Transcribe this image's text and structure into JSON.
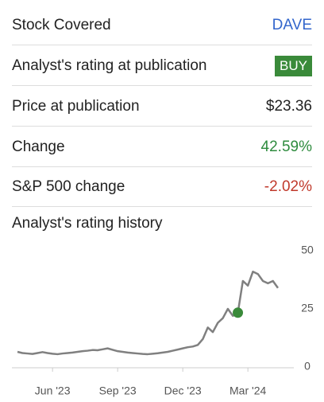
{
  "rows": [
    {
      "label": "Stock Covered",
      "value": "DAVE"
    },
    {
      "label": "Analyst's rating at publication",
      "value": "BUY"
    },
    {
      "label": "Price at publication",
      "value": "$23.36"
    },
    {
      "label": "Change",
      "value": "42.59%"
    },
    {
      "label": "S&P 500 change",
      "value": "-2.02%"
    }
  ],
  "chart_data": {
    "type": "line",
    "title": "Analyst's rating history",
    "categories": [
      null,
      null,
      null,
      null,
      null,
      null,
      null,
      "Jun '23",
      null,
      null,
      null,
      null,
      null,
      null,
      null,
      null,
      null,
      null,
      null,
      null,
      "Sep '23",
      null,
      null,
      null,
      null,
      null,
      null,
      null,
      null,
      null,
      null,
      null,
      null,
      "Dec '23",
      null,
      null,
      null,
      null,
      null,
      null,
      null,
      null,
      null,
      null,
      null,
      null,
      "Mar '24",
      null,
      null,
      null,
      null,
      null,
      null
    ],
    "values": [
      6.5,
      6,
      5.8,
      5.6,
      6,
      6.4,
      6,
      5.7,
      5.5,
      5.8,
      6,
      6.2,
      6.5,
      6.8,
      7,
      7.3,
      7.2,
      7.6,
      8,
      7.4,
      6.8,
      6.5,
      6.2,
      6,
      5.8,
      5.6,
      5.5,
      5.7,
      5.9,
      6.2,
      6.5,
      7,
      7.5,
      8,
      8.5,
      8.8,
      9.5,
      12,
      17,
      15,
      19,
      21,
      25,
      22,
      23.36,
      37,
      35,
      41,
      40,
      37,
      36,
      37,
      34
    ],
    "color": "#808080",
    "marker": {
      "index": 44,
      "value": 23.36,
      "color": "#3a8a3a"
    },
    "ylim": [
      0,
      50
    ],
    "yticks": [
      0,
      25,
      50
    ],
    "grid": false
  }
}
